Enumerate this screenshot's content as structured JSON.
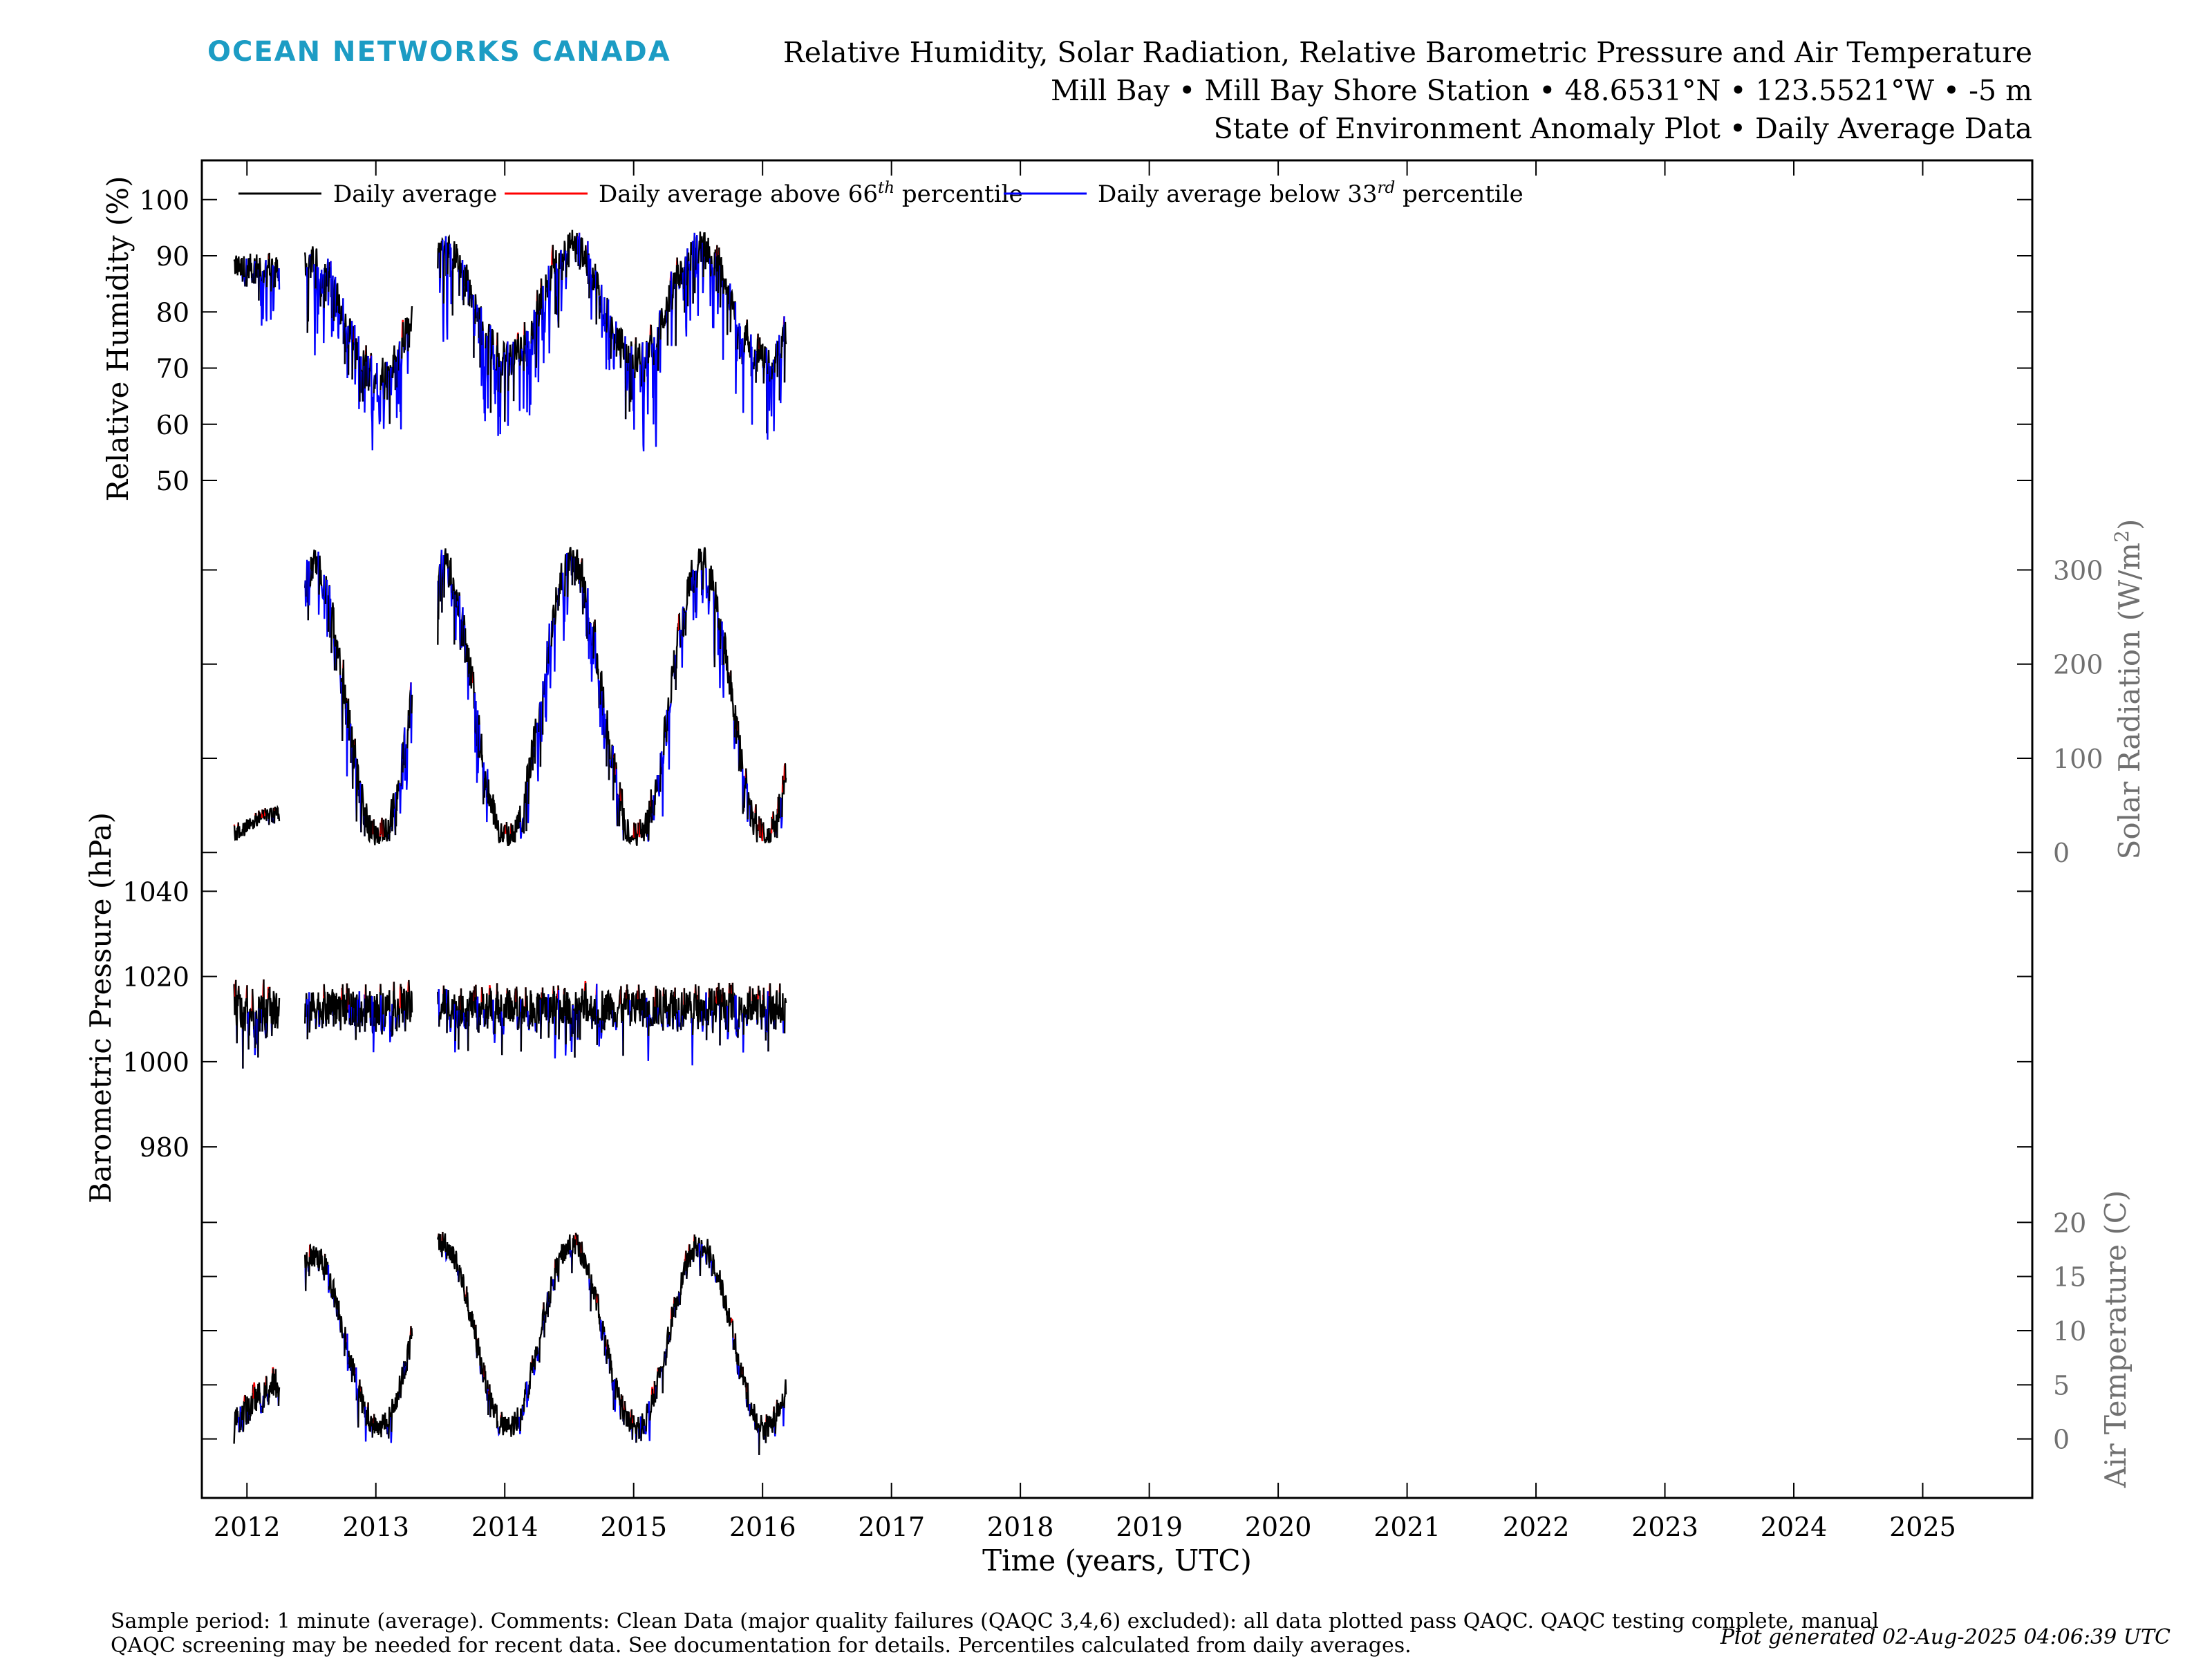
{
  "brand": {
    "name": "OCEAN NETWORKS CANADA",
    "color": "#1c9cc4"
  },
  "header": {
    "line1": "Relative Humidity, Solar Radiation, Relative Barometric Pressure and Air Temperature",
    "line2": "Mill Bay • Mill Bay Shore Station • 48.6531°N • 123.5521°W • -5 m",
    "line3": "State of Environment Anomaly Plot • Daily Average Data"
  },
  "legend": {
    "placement": "top-left",
    "daily": "Daily average",
    "above_pre": "Daily average above 66",
    "above_sup": "th",
    "above_post": " percentile",
    "below_pre": "Daily average below 33",
    "below_sup": "rd",
    "below_post": " percentile"
  },
  "colors": {
    "daily": "#000000",
    "above": "#ff0000",
    "below": "#0000ff",
    "right_axis": "#707070"
  },
  "footer": {
    "line1": "Sample period: 1 minute (average). Comments: Clean Data (major quality failures (QAQC 3,4,6) excluded): all data plotted pass QAQC. QAQC testing complete, manual",
    "line2": "QAQC screening may be needed for recent data. See documentation for details. Percentiles calculated from daily averages.",
    "generated": "Plot generated 02-Aug-2025 04:06:39 UTC"
  },
  "chart_data": {
    "type": "line",
    "xlabel": "Time (years, UTC)",
    "xlim": [
      2011.65,
      2025.85
    ],
    "xticks": [
      "2012",
      "2013",
      "2014",
      "2015",
      "2016",
      "2017",
      "2018",
      "2019",
      "2020",
      "2021",
      "2022",
      "2023",
      "2024",
      "2025"
    ],
    "grid": false,
    "panels": [
      {
        "name": "relative_humidity",
        "ylabel": "Relative Humidity (%)",
        "axis_side": "left",
        "ylim": [
          42,
          106
        ],
        "yticks": [
          "50",
          "60",
          "70",
          "80",
          "90",
          "100"
        ],
        "gaps": [
          [
            2012.22,
            2012.45
          ],
          [
            2013.28,
            2013.48
          ],
          [
            2016.18,
            2025.85
          ]
        ],
        "segments": [
          {
            "x0": 2011.9,
            "x1": 2012.25,
            "base": 88,
            "amp": 0,
            "phase": 0,
            "noise": 4,
            "dip_prob": 0.18,
            "dip": 14
          },
          {
            "x0": 2012.45,
            "x1": 2013.28,
            "base": 79,
            "amp": 10,
            "phase": 0.0,
            "noise": 4.5,
            "dip_prob": 0.22,
            "dip": 18
          },
          {
            "x0": 2013.48,
            "x1": 2016.18,
            "base": 82,
            "amp": 10,
            "phase": 0.0,
            "noise": 4.5,
            "dip_prob": 0.22,
            "dip": 20
          }
        ],
        "range": [
          44,
          98
        ]
      },
      {
        "name": "solar_radiation",
        "ylabel": "Solar Radiation (W/m²)",
        "ylabel_pre": "Solar Radiation (W/m",
        "ylabel_sup": "2",
        "ylabel_post": ")",
        "axis_side": "right",
        "ylim": [
          -5,
          340
        ],
        "yticks": [
          "0",
          "100",
          "200",
          "300"
        ],
        "gaps": [
          [
            2012.22,
            2012.45
          ],
          [
            2013.28,
            2013.48
          ],
          [
            2016.18,
            2025.85
          ]
        ],
        "segments": [
          {
            "x0": 2011.9,
            "x1": 2012.25,
            "base": 25,
            "amp": 15,
            "phase": 0.3,
            "noise": 14,
            "dip_prob": 0.1,
            "dip": 10
          },
          {
            "x0": 2012.45,
            "x1": 2013.28,
            "base": 160,
            "amp": 150,
            "phase": 0.0,
            "noise": 30,
            "dip_prob": 0.25,
            "dip": 90
          },
          {
            "x0": 2013.48,
            "x1": 2016.18,
            "base": 160,
            "amp": 150,
            "phase": 0.0,
            "noise": 30,
            "dip_prob": 0.25,
            "dip": 90
          }
        ],
        "range": [
          5,
          325
        ]
      },
      {
        "name": "barometric_pressure",
        "ylabel": "Barometric Pressure (hPa)",
        "axis_side": "left",
        "ylim": [
          975,
          1048
        ],
        "yticks": [
          "980",
          "1000",
          "1020",
          "1040"
        ],
        "gaps": [
          [
            2012.22,
            2012.45
          ],
          [
            2013.28,
            2013.48
          ],
          [
            2016.18,
            2025.85
          ]
        ],
        "segments": [
          {
            "x0": 2011.9,
            "x1": 2012.25,
            "base": 1012,
            "amp": 0,
            "phase": 0,
            "noise": 8,
            "dip_prob": 0.1,
            "dip": 12
          },
          {
            "x0": 2012.45,
            "x1": 2013.28,
            "base": 1013,
            "amp": 0,
            "phase": 0,
            "noise": 7,
            "dip_prob": 0.1,
            "dip": 12
          },
          {
            "x0": 2013.48,
            "x1": 2016.18,
            "base": 1013,
            "amp": 0,
            "phase": 0,
            "noise": 7,
            "dip_prob": 0.1,
            "dip": 14
          }
        ],
        "range": [
          980,
          1045
        ]
      },
      {
        "name": "air_temperature",
        "ylabel": "Air Temperature (C)",
        "axis_side": "right",
        "ylim": [
          -5,
          25
        ],
        "yticks": [
          "0",
          "5",
          "10",
          "15",
          "20"
        ],
        "gaps": [
          [
            2012.22,
            2012.45
          ],
          [
            2013.28,
            2013.48
          ],
          [
            2016.18,
            2025.85
          ]
        ],
        "segments": [
          {
            "x0": 2011.9,
            "x1": 2012.25,
            "base": 3,
            "amp": 2,
            "phase": 0.25,
            "noise": 2.2,
            "dip_prob": 0.1,
            "dip": 3
          },
          {
            "x0": 2012.45,
            "x1": 2013.28,
            "base": 9,
            "amp": 8,
            "phase": 0.0,
            "noise": 1.8,
            "dip_prob": 0.08,
            "dip": 3
          },
          {
            "x0": 2013.48,
            "x1": 2016.18,
            "base": 9.5,
            "amp": 8.5,
            "phase": 0.0,
            "noise": 1.8,
            "dip_prob": 0.08,
            "dip": 3
          }
        ],
        "range": [
          -3,
          22
        ]
      }
    ]
  }
}
